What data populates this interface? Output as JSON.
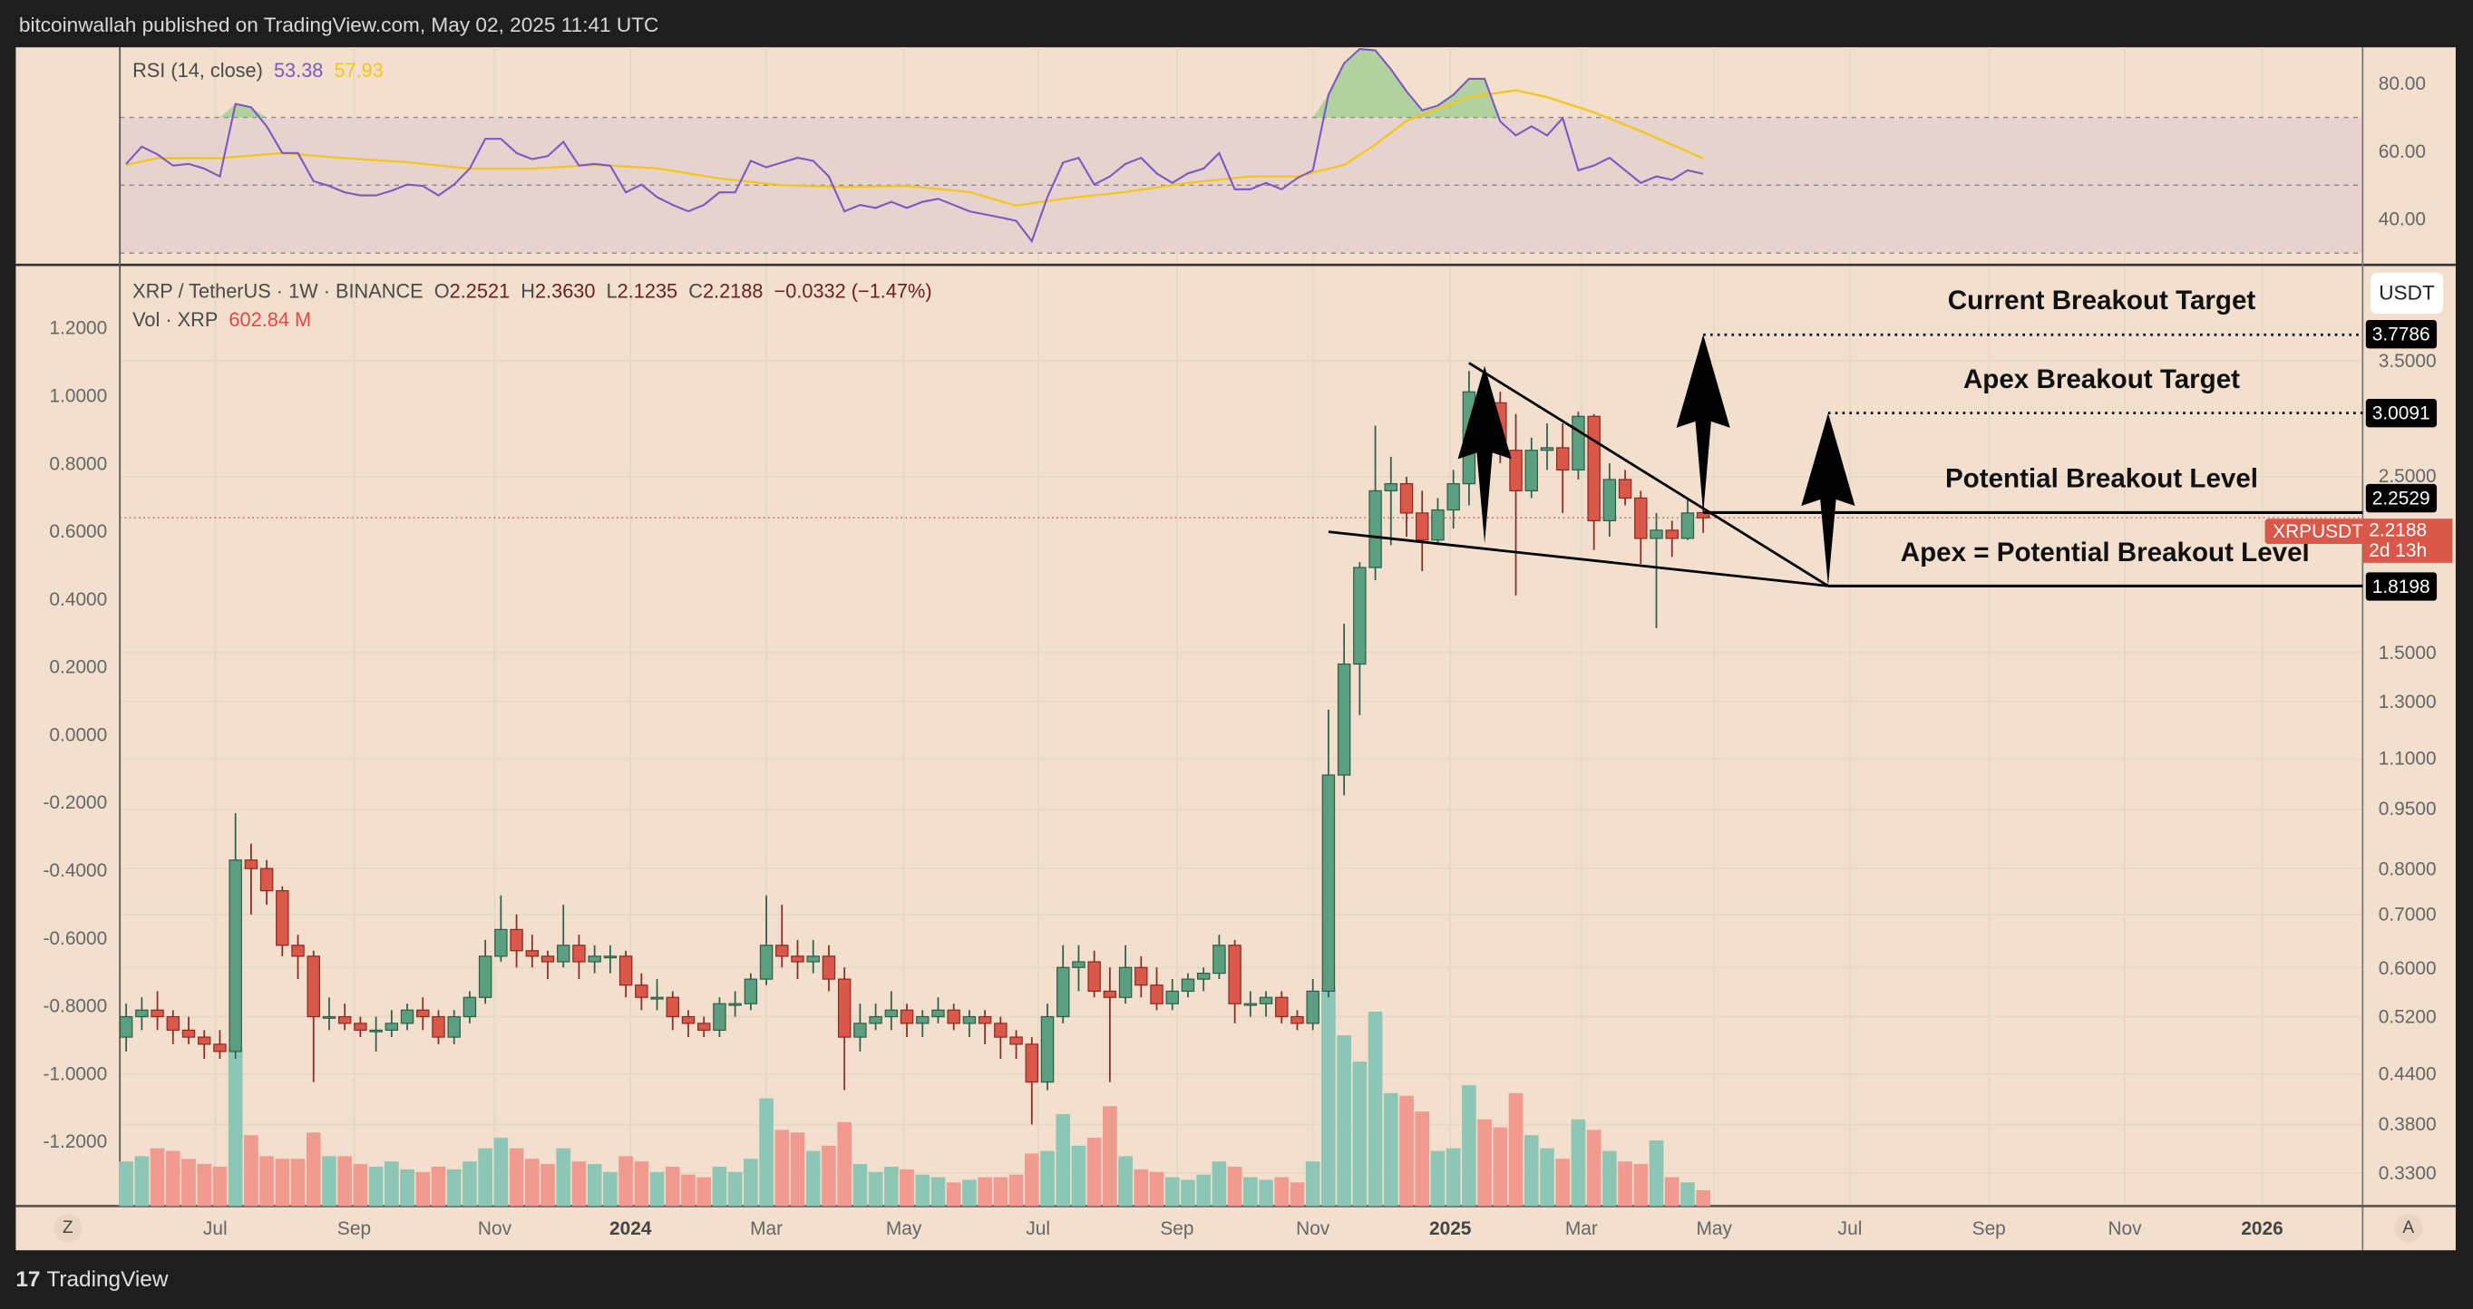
{
  "header": {
    "published": "bitcoinwallah published on TradingView.com, May 02, 2025 11:41 UTC"
  },
  "rsi": {
    "label": "RSI (14, close)",
    "value": "53.38",
    "ma_value": "57.93",
    "axis": [
      "80.00",
      "60.00",
      "40.00"
    ],
    "upper": 70,
    "lower": 30,
    "mid": 50
  },
  "legend": {
    "symbol": "XRP / TetherUS · 1W · BINANCE",
    "o_label": "O",
    "o": "2.2521",
    "h_label": "H",
    "h": "2.3630",
    "l_label": "L",
    "l": "2.1235",
    "c_label": "C",
    "c": "2.2188",
    "change": "−0.0332 (−1.47%)",
    "vol_label": "Vol · XRP",
    "vol": "602.84 M"
  },
  "left_axis": [
    "1.2000",
    "1.0000",
    "0.8000",
    "0.6000",
    "0.4000",
    "0.2000",
    "0.0000",
    "-0.2000",
    "-0.4000",
    "-0.6000",
    "-0.8000",
    "-1.0000",
    "-1.2000"
  ],
  "right_axis": {
    "currency": "USDT",
    "ticks": [
      "3.5000",
      "2.5000",
      "1.5000",
      "1.3000",
      "1.1000",
      "0.9500",
      "0.8000",
      "0.7000",
      "0.6000",
      "0.5200",
      "0.4400",
      "0.3800",
      "0.3300"
    ],
    "tick_values": [
      3.5,
      2.5,
      1.5,
      1.3,
      1.1,
      0.95,
      0.8,
      0.7,
      0.6,
      0.52,
      0.44,
      0.38,
      0.33
    ]
  },
  "current": {
    "symbol": "XRPUSDT",
    "price": "2.2188",
    "countdown": "2d 13h",
    "value": 2.2188
  },
  "levels": [
    {
      "label": "Current Breakout Target",
      "price": "3.7786",
      "value": 3.7786,
      "style": "dotted",
      "from_index": 101
    },
    {
      "label": "Apex Breakout Target",
      "price": "3.0091",
      "value": 3.0091,
      "style": "dotted",
      "from_index": 109
    },
    {
      "label": "Potential Breakout Level",
      "price": "2.2529",
      "value": 2.2529,
      "style": "solid",
      "from_index": 101
    },
    {
      "label": "Apex = Potential Breakout Level",
      "price": "1.8198",
      "value": 1.8198,
      "style": "solid",
      "from_index": 109
    }
  ],
  "triangle": {
    "upper": [
      [
        86,
        3.48
      ],
      [
        109,
        1.8198
      ]
    ],
    "lower": [
      [
        77,
        2.13
      ],
      [
        109,
        1.8198
      ]
    ]
  },
  "arrows": [
    {
      "index": 87,
      "from": 2.06,
      "to": 3.45
    },
    {
      "index": 101,
      "from": 2.25,
      "to": 3.7786
    },
    {
      "index": 109,
      "from": 1.8198,
      "to": 3.0091
    }
  ],
  "time_axis": [
    {
      "label": "Jul",
      "weeks": 5.7,
      "bold": false
    },
    {
      "label": "Sep",
      "weeks": 14.6,
      "bold": false
    },
    {
      "label": "Nov",
      "weeks": 23.6,
      "bold": false
    },
    {
      "label": "2024",
      "weeks": 32.3,
      "bold": true
    },
    {
      "label": "Mar",
      "weeks": 41.0,
      "bold": false
    },
    {
      "label": "May",
      "weeks": 49.8,
      "bold": false
    },
    {
      "label": "Jul",
      "weeks": 58.4,
      "bold": false
    },
    {
      "label": "Sep",
      "weeks": 67.3,
      "bold": false
    },
    {
      "label": "Nov",
      "weeks": 76.0,
      "bold": false
    },
    {
      "label": "2025",
      "weeks": 84.8,
      "bold": true
    },
    {
      "label": "Mar",
      "weeks": 93.2,
      "bold": false
    },
    {
      "label": "May",
      "weeks": 101.7,
      "bold": false
    },
    {
      "label": "Jul",
      "weeks": 110.4,
      "bold": false
    },
    {
      "label": "Sep",
      "weeks": 119.3,
      "bold": false
    },
    {
      "label": "Nov",
      "weeks": 128.0,
      "bold": false
    },
    {
      "label": "2026",
      "weeks": 136.8,
      "bold": true
    }
  ],
  "nav": {
    "left": "Z",
    "right": "A"
  },
  "footer": {
    "brand_mark": "17",
    "brand": "TradingView"
  },
  "colors": {
    "up": "#5c9e80",
    "down": "#d9584a",
    "vol_up": "#8ec6b6",
    "vol_down": "#f09a90",
    "rsi": "#7e57c2",
    "rsi_ma": "#f5c518",
    "bg": "#f2dfcd"
  },
  "chart_data": {
    "type": "candlestick",
    "interval": "1W",
    "first_week": "2023-05-22",
    "fields": [
      "open",
      "high",
      "low",
      "close",
      "volume_M"
    ],
    "candles": [
      [
        0.49,
        0.54,
        0.47,
        0.52,
        1700
      ],
      [
        0.52,
        0.55,
        0.5,
        0.53,
        1900
      ],
      [
        0.53,
        0.56,
        0.5,
        0.52,
        2200
      ],
      [
        0.52,
        0.53,
        0.48,
        0.5,
        2100
      ],
      [
        0.5,
        0.52,
        0.48,
        0.49,
        1800
      ],
      [
        0.49,
        0.5,
        0.46,
        0.48,
        1600
      ],
      [
        0.48,
        0.5,
        0.46,
        0.47,
        1500
      ],
      [
        0.47,
        0.94,
        0.46,
        0.82,
        6000
      ],
      [
        0.82,
        0.86,
        0.7,
        0.8,
        2700
      ],
      [
        0.8,
        0.82,
        0.72,
        0.75,
        1900
      ],
      [
        0.75,
        0.76,
        0.62,
        0.64,
        1800
      ],
      [
        0.64,
        0.66,
        0.58,
        0.62,
        1800
      ],
      [
        0.62,
        0.63,
        0.43,
        0.52,
        2800
      ],
      [
        0.52,
        0.55,
        0.5,
        0.52,
        1900
      ],
      [
        0.52,
        0.54,
        0.5,
        0.51,
        1900
      ],
      [
        0.51,
        0.52,
        0.49,
        0.5,
        1600
      ],
      [
        0.5,
        0.52,
        0.47,
        0.5,
        1500
      ],
      [
        0.5,
        0.53,
        0.49,
        0.51,
        1700
      ],
      [
        0.51,
        0.54,
        0.5,
        0.53,
        1400
      ],
      [
        0.53,
        0.55,
        0.5,
        0.52,
        1300
      ],
      [
        0.52,
        0.53,
        0.48,
        0.49,
        1500
      ],
      [
        0.49,
        0.53,
        0.48,
        0.52,
        1400
      ],
      [
        0.52,
        0.56,
        0.51,
        0.55,
        1700
      ],
      [
        0.55,
        0.65,
        0.54,
        0.62,
        2200
      ],
      [
        0.62,
        0.74,
        0.61,
        0.67,
        2600
      ],
      [
        0.67,
        0.7,
        0.6,
        0.63,
        2200
      ],
      [
        0.63,
        0.66,
        0.6,
        0.62,
        1800
      ],
      [
        0.62,
        0.63,
        0.58,
        0.61,
        1600
      ],
      [
        0.61,
        0.72,
        0.6,
        0.64,
        2200
      ],
      [
        0.64,
        0.66,
        0.58,
        0.61,
        1700
      ],
      [
        0.61,
        0.64,
        0.59,
        0.62,
        1600
      ],
      [
        0.62,
        0.64,
        0.59,
        0.62,
        1300
      ],
      [
        0.62,
        0.63,
        0.55,
        0.57,
        1900
      ],
      [
        0.57,
        0.59,
        0.53,
        0.55,
        1700
      ],
      [
        0.55,
        0.58,
        0.53,
        0.55,
        1300
      ],
      [
        0.55,
        0.56,
        0.5,
        0.52,
        1500
      ],
      [
        0.52,
        0.53,
        0.49,
        0.51,
        1200
      ],
      [
        0.51,
        0.52,
        0.49,
        0.5,
        1100
      ],
      [
        0.5,
        0.55,
        0.49,
        0.54,
        1500
      ],
      [
        0.54,
        0.56,
        0.52,
        0.54,
        1300
      ],
      [
        0.54,
        0.59,
        0.53,
        0.58,
        1800
      ],
      [
        0.58,
        0.74,
        0.57,
        0.64,
        4100
      ],
      [
        0.64,
        0.72,
        0.6,
        0.62,
        2900
      ],
      [
        0.62,
        0.65,
        0.58,
        0.61,
        2800
      ],
      [
        0.61,
        0.65,
        0.59,
        0.62,
        2100
      ],
      [
        0.62,
        0.64,
        0.56,
        0.58,
        2300
      ],
      [
        0.58,
        0.6,
        0.42,
        0.49,
        3200
      ],
      [
        0.49,
        0.54,
        0.47,
        0.51,
        1600
      ],
      [
        0.51,
        0.54,
        0.5,
        0.52,
        1300
      ],
      [
        0.52,
        0.56,
        0.5,
        0.53,
        1500
      ],
      [
        0.53,
        0.54,
        0.49,
        0.51,
        1400
      ],
      [
        0.51,
        0.53,
        0.49,
        0.52,
        1200
      ],
      [
        0.52,
        0.55,
        0.51,
        0.53,
        1100
      ],
      [
        0.53,
        0.54,
        0.5,
        0.51,
        900
      ],
      [
        0.51,
        0.53,
        0.49,
        0.52,
        1000
      ],
      [
        0.52,
        0.53,
        0.48,
        0.51,
        1100
      ],
      [
        0.51,
        0.52,
        0.46,
        0.49,
        1100
      ],
      [
        0.49,
        0.5,
        0.46,
        0.48,
        1200
      ],
      [
        0.48,
        0.49,
        0.38,
        0.43,
        2000
      ],
      [
        0.43,
        0.54,
        0.42,
        0.52,
        2100
      ],
      [
        0.52,
        0.64,
        0.51,
        0.6,
        3500
      ],
      [
        0.6,
        0.64,
        0.56,
        0.61,
        2300
      ],
      [
        0.61,
        0.63,
        0.55,
        0.56,
        2600
      ],
      [
        0.56,
        0.6,
        0.43,
        0.55,
        3800
      ],
      [
        0.55,
        0.64,
        0.54,
        0.6,
        1900
      ],
      [
        0.6,
        0.62,
        0.55,
        0.57,
        1400
      ],
      [
        0.57,
        0.6,
        0.53,
        0.54,
        1300
      ],
      [
        0.54,
        0.58,
        0.53,
        0.56,
        1100
      ],
      [
        0.56,
        0.59,
        0.55,
        0.58,
        1000
      ],
      [
        0.58,
        0.6,
        0.56,
        0.59,
        1200
      ],
      [
        0.59,
        0.66,
        0.58,
        0.64,
        1700
      ],
      [
        0.64,
        0.65,
        0.51,
        0.54,
        1500
      ],
      [
        0.54,
        0.56,
        0.52,
        0.54,
        1100
      ],
      [
        0.54,
        0.56,
        0.52,
        0.55,
        1000
      ],
      [
        0.55,
        0.56,
        0.51,
        0.52,
        1100
      ],
      [
        0.52,
        0.53,
        0.5,
        0.51,
        900
      ],
      [
        0.51,
        0.58,
        0.5,
        0.56,
        1700
      ],
      [
        0.56,
        1.27,
        0.55,
        1.05,
        8300
      ],
      [
        1.05,
        1.63,
        0.99,
        1.45,
        6500
      ],
      [
        1.45,
        1.95,
        1.25,
        1.92,
        5500
      ],
      [
        1.92,
        2.9,
        1.85,
        2.4,
        7400
      ],
      [
        2.4,
        2.65,
        2.05,
        2.45,
        4300
      ],
      [
        2.45,
        2.5,
        2.1,
        2.25,
        4200
      ],
      [
        2.25,
        2.4,
        1.9,
        2.08,
        3600
      ],
      [
        2.08,
        2.35,
        2.05,
        2.27,
        2100
      ],
      [
        2.27,
        2.55,
        2.15,
        2.45,
        2200
      ],
      [
        2.45,
        3.4,
        2.3,
        3.2,
        4600
      ],
      [
        3.2,
        3.4,
        2.95,
        3.1,
        3300
      ],
      [
        3.1,
        3.2,
        2.6,
        2.7,
        3000
      ],
      [
        2.7,
        3.0,
        1.77,
        2.4,
        4300
      ],
      [
        2.4,
        2.8,
        2.35,
        2.7,
        2700
      ],
      [
        2.7,
        2.92,
        2.55,
        2.72,
        2200
      ],
      [
        2.72,
        2.92,
        2.25,
        2.55,
        1800
      ],
      [
        2.55,
        3.02,
        2.48,
        2.98,
        3300
      ],
      [
        2.98,
        3.0,
        2.02,
        2.2,
        2900
      ],
      [
        2.2,
        2.6,
        2.1,
        2.48,
        2100
      ],
      [
        2.48,
        2.55,
        2.3,
        2.35,
        1700
      ],
      [
        2.35,
        2.4,
        1.94,
        2.09,
        1600
      ],
      [
        2.09,
        2.25,
        1.61,
        2.14,
        2500
      ],
      [
        2.14,
        2.2,
        1.98,
        2.09,
        1100
      ],
      [
        2.09,
        2.35,
        2.08,
        2.25,
        900
      ],
      [
        2.2521,
        2.363,
        2.1235,
        2.2188,
        602.84
      ]
    ],
    "rsi": [
      56.3,
      61.4,
      59.1,
      55.8,
      56.3,
      54.9,
      52.6,
      74,
      73,
      67.4,
      59.5,
      59.5,
      51.2,
      49.8,
      47.9,
      47,
      47,
      48.4,
      50.2,
      49.8,
      47,
      50.2,
      54.9,
      63.7,
      63.7,
      59.5,
      57.7,
      58.6,
      62.8,
      55.8,
      56.3,
      55.8,
      47.9,
      50.2,
      46.5,
      44.2,
      42.3,
      44.2,
      47.9,
      47.9,
      57.2,
      55.3,
      56.7,
      58.1,
      57.2,
      52.6,
      42.3,
      44.2,
      43.3,
      45.1,
      43.3,
      45.1,
      46,
      44.2,
      42.3,
      41.4,
      40.5,
      39.5,
      33.5,
      46.5,
      56.7,
      58.1,
      50.2,
      52.6,
      56.3,
      58.1,
      53.5,
      50.7,
      53.5,
      54.9,
      59.5,
      48.8,
      48.8,
      50.7,
      48.8,
      52.1,
      54.4,
      76.7,
      86,
      90.2,
      89.8,
      84.2,
      77.7,
      72.1,
      73.5,
      76.7,
      81.4,
      81.4,
      68.8,
      64.7,
      67.4,
      64.7,
      69.8,
      54.4,
      55.8,
      58.1,
      54.4,
      50.7,
      52.6,
      51.6,
      54.4,
      53.38
    ],
    "rsi_ma": [
      [
        0,
        56
      ],
      [
        2,
        58
      ],
      [
        6,
        58
      ],
      [
        10,
        59.5
      ],
      [
        14,
        58
      ],
      [
        18,
        56.8
      ],
      [
        22,
        54.9
      ],
      [
        26,
        54.9
      ],
      [
        30,
        56
      ],
      [
        34,
        55
      ],
      [
        38,
        52
      ],
      [
        42,
        50
      ],
      [
        46,
        49.5
      ],
      [
        50,
        49.8
      ],
      [
        54,
        48
      ],
      [
        57,
        44
      ],
      [
        60,
        46
      ],
      [
        64,
        48
      ],
      [
        68,
        50.7
      ],
      [
        72,
        52.6
      ],
      [
        75,
        52.6
      ],
      [
        78,
        56
      ],
      [
        80,
        62
      ],
      [
        82,
        69
      ],
      [
        86,
        76
      ],
      [
        89,
        78
      ],
      [
        91,
        76
      ],
      [
        94,
        71.5
      ],
      [
        97,
        66
      ],
      [
        101,
        57.93
      ]
    ]
  }
}
